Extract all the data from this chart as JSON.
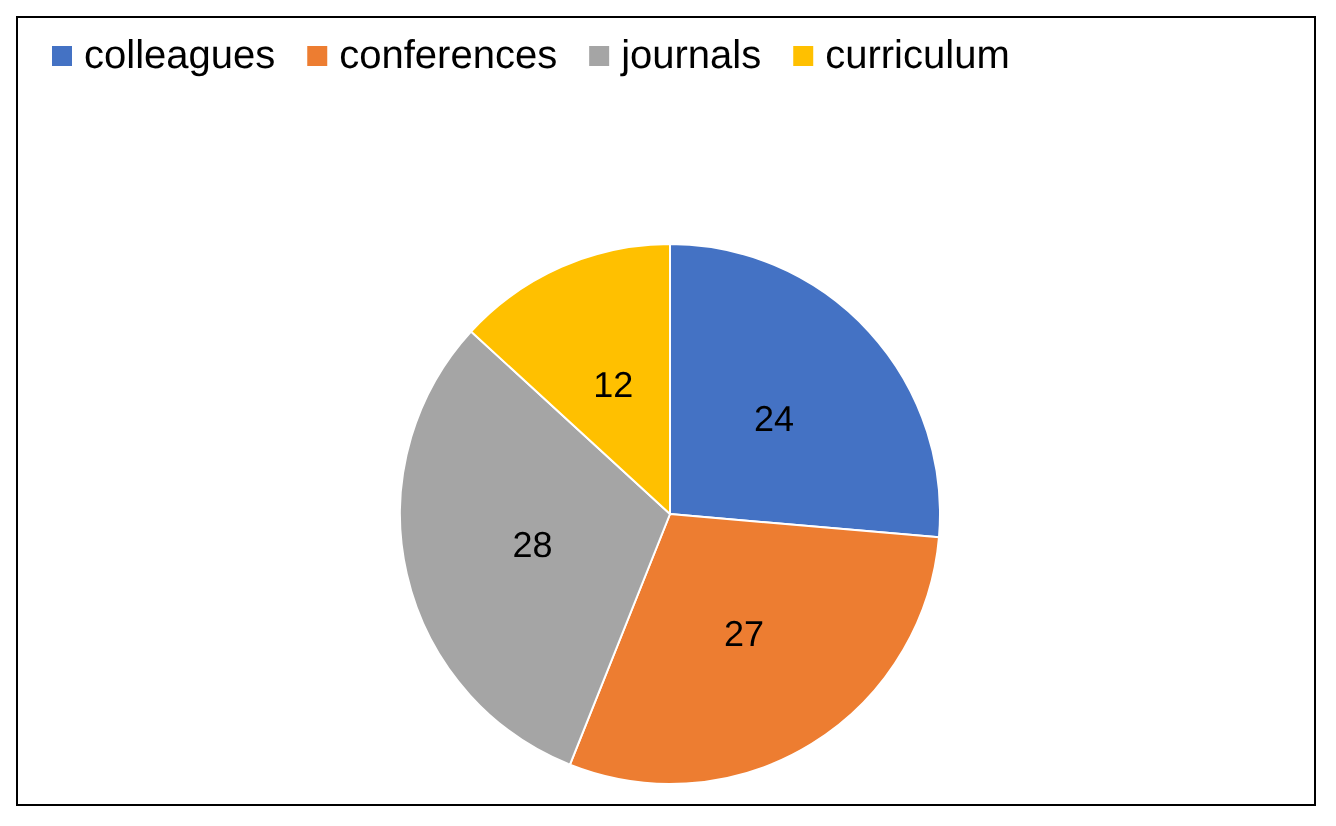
{
  "chart_data": {
    "type": "pie",
    "categories": [
      "colleagues",
      "conferences",
      "journals",
      "curriculum"
    ],
    "values": [
      24,
      27,
      28,
      12
    ],
    "colors": [
      "#4472c4",
      "#ed7d31",
      "#a5a5a5",
      "#ffc000"
    ],
    "data_labels": true,
    "legend": "top left"
  }
}
